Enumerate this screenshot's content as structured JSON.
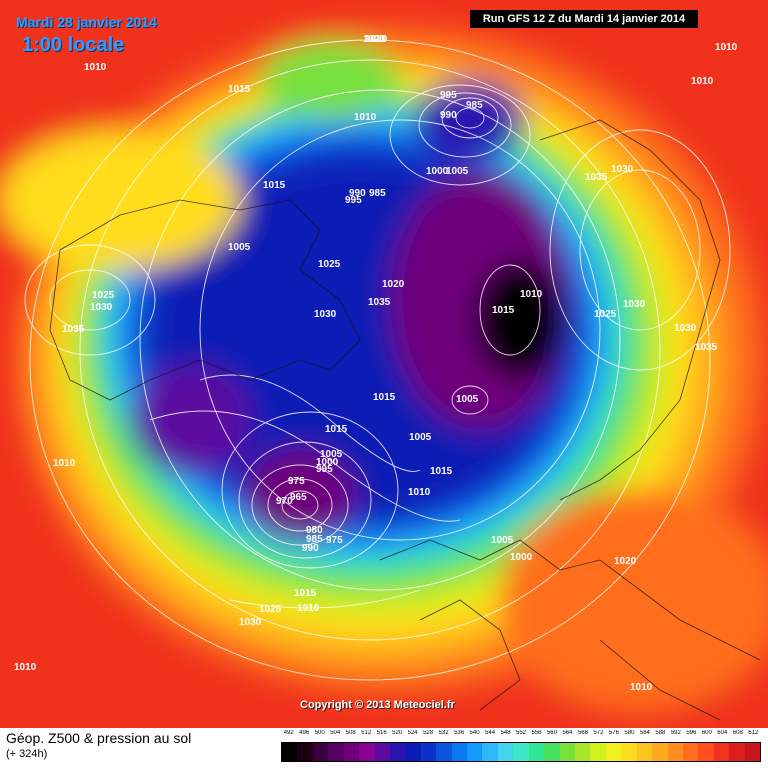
{
  "header": {
    "valid_date": "Mardi 28 janvier 2014",
    "valid_time": "1:00 locale",
    "run_info": "Run GFS 12 Z du Mardi 14 janvier 2014"
  },
  "copyright": "Copyright © 2013 Meteociel.fr",
  "footer": {
    "product": "Géop. Z500 & pression au sol",
    "lead_time": "(+ 324h)"
  },
  "legend": {
    "labels": [
      "492",
      "496",
      "500",
      "504",
      "508",
      "512",
      "516",
      "520",
      "524",
      "528",
      "532",
      "536",
      "540",
      "544",
      "548",
      "552",
      "556",
      "560",
      "564",
      "568",
      "572",
      "576",
      "580",
      "584",
      "588",
      "592",
      "596",
      "600",
      "604",
      "608",
      "612"
    ],
    "colors": [
      "#000000",
      "#1a0010",
      "#3a0040",
      "#55005e",
      "#6e007a",
      "#880094",
      "#5c0aa0",
      "#2a14b0",
      "#0a1eb4",
      "#0a32c8",
      "#0a55e0",
      "#0a78f0",
      "#1499ff",
      "#2cb8ff",
      "#44d2f0",
      "#3ce6c8",
      "#32e696",
      "#46e05a",
      "#78e03c",
      "#aae628",
      "#d2f01e",
      "#f0f01e",
      "#ffdc1e",
      "#ffc31e",
      "#ffaa1e",
      "#ff8c1e",
      "#ff6e1e",
      "#ff501e",
      "#f0321e",
      "#dc1e1e",
      "#c8141e"
    ]
  },
  "isobars": [
    {
      "label": "1020"
    },
    {
      "label": "1010"
    },
    {
      "label": "1015"
    },
    {
      "label": "1010"
    },
    {
      "label": "1005"
    },
    {
      "label": "1010"
    },
    {
      "label": "995"
    },
    {
      "label": "985"
    },
    {
      "label": "990"
    },
    {
      "label": "1000"
    },
    {
      "label": "1005"
    },
    {
      "label": "990"
    },
    {
      "label": "985"
    },
    {
      "label": "995"
    },
    {
      "label": "1015"
    },
    {
      "label": "1025"
    },
    {
      "label": "1020"
    },
    {
      "label": "1035"
    },
    {
      "label": "1030"
    },
    {
      "label": "1035"
    },
    {
      "label": "1010"
    },
    {
      "label": "1015"
    },
    {
      "label": "1025"
    },
    {
      "label": "1030"
    },
    {
      "label": "1030"
    },
    {
      "label": "1035"
    },
    {
      "label": "1025"
    },
    {
      "label": "1030"
    },
    {
      "label": "1035"
    },
    {
      "label": "1030"
    },
    {
      "label": "1015"
    },
    {
      "label": "1005"
    },
    {
      "label": "1015"
    },
    {
      "label": "1005"
    },
    {
      "label": "1010"
    },
    {
      "label": "1015"
    },
    {
      "label": "1005"
    },
    {
      "label": "1000"
    },
    {
      "label": "995"
    },
    {
      "label": "975"
    },
    {
      "label": "970"
    },
    {
      "label": "965"
    },
    {
      "label": "980"
    },
    {
      "label": "985"
    },
    {
      "label": "975"
    },
    {
      "label": "990"
    },
    {
      "label": "1015"
    },
    {
      "label": "1010"
    },
    {
      "label": "1005"
    },
    {
      "label": "1000"
    },
    {
      "label": "1020"
    },
    {
      "label": "1025"
    },
    {
      "label": "1020"
    },
    {
      "label": "1030"
    },
    {
      "label": "1010"
    },
    {
      "label": "1010"
    },
    {
      "label": "1010"
    },
    {
      "label": "1010"
    },
    {
      "label": "1035"
    }
  ]
}
